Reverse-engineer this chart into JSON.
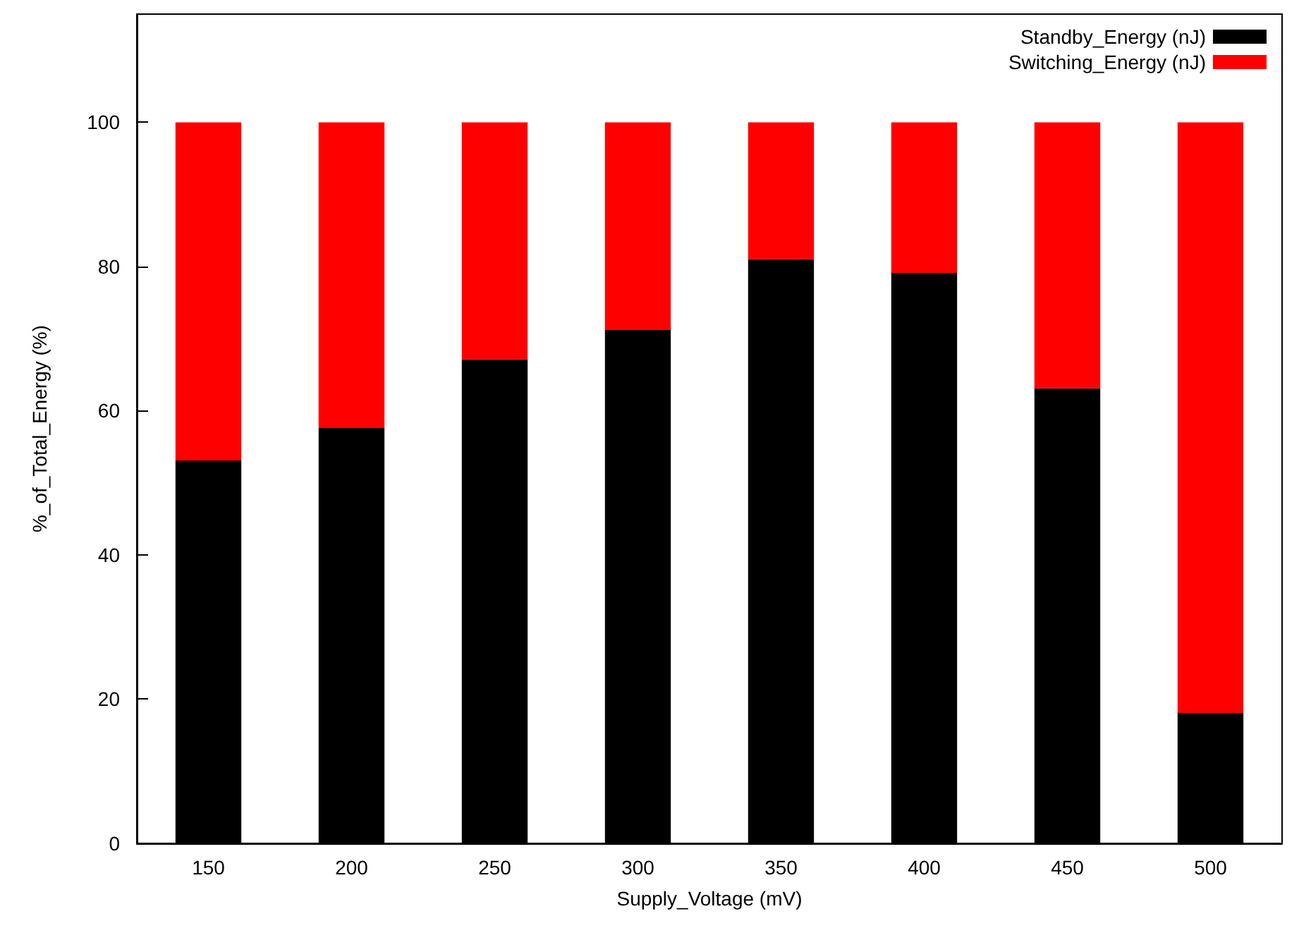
{
  "chart_data": {
    "type": "bar",
    "stacked": true,
    "xlabel": "Supply_Voltage (mV)",
    "ylabel": "%_of_Total_Energy (%)",
    "categories": [
      "150",
      "200",
      "250",
      "300",
      "350",
      "400",
      "450",
      "500"
    ],
    "series": [
      {
        "name": "Standby_Energy (nJ)",
        "color": "#000000",
        "values": [
          53.1,
          57.6,
          67.1,
          71.2,
          81,
          79.1,
          63.1,
          18.1
        ]
      },
      {
        "name": "Switching_Energy (nJ)",
        "color": "#ff0000",
        "values": [
          46.9,
          42.4,
          32.9,
          28.8,
          19,
          20.9,
          36.9,
          81.9
        ]
      }
    ],
    "ylim": [
      0,
      115
    ],
    "yticks": [
      0,
      20,
      40,
      60,
      80,
      100
    ],
    "grid": false,
    "legend": "top right"
  }
}
